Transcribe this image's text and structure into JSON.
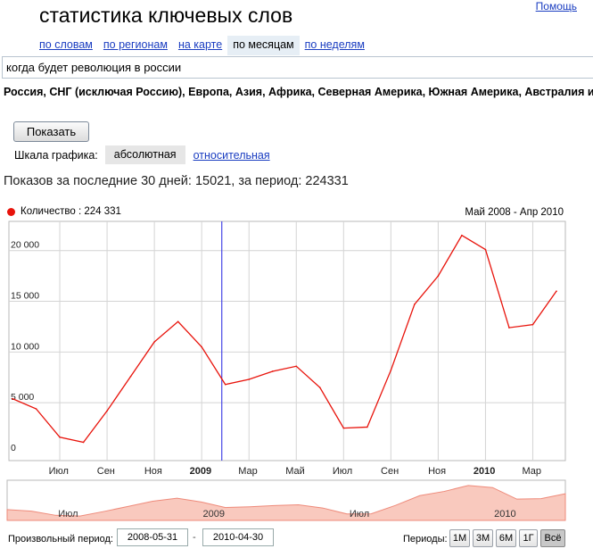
{
  "header": {
    "help": "Помощь",
    "title": "статистика ключевых слов"
  },
  "tabs": [
    {
      "label": "по словам",
      "active": false
    },
    {
      "label": "по регионам",
      "active": false
    },
    {
      "label": "на карте",
      "active": false
    },
    {
      "label": "по месяцам",
      "active": true
    },
    {
      "label": "по неделям",
      "active": false
    }
  ],
  "query": {
    "value": "когда будет революция в россии"
  },
  "regions": "Россия, СНГ (исключая Россию), Европа, Азия, Африка, Северная Америка, Южная Америка, Австралия и Океания",
  "show_button": "Показать",
  "scale": {
    "label": "Шкала графика:",
    "absolute": "абсолютная",
    "relative": "относительная"
  },
  "summary": "Показов за последние 30 дней: 15021, за период: 224331",
  "chart_data": {
    "type": "line",
    "legend": "Количество : 224 331",
    "range_label": "Май 2008 - Апр 2010",
    "x": [
      "2008-05",
      "2008-06",
      "2008-07",
      "2008-08",
      "2008-09",
      "2008-10",
      "2008-11",
      "2008-12",
      "2009-01",
      "2009-02",
      "2009-03",
      "2009-04",
      "2009-05",
      "2009-06",
      "2009-07",
      "2009-08",
      "2009-09",
      "2009-10",
      "2009-11",
      "2009-12",
      "2010-01",
      "2010-02",
      "2010-03",
      "2010-04"
    ],
    "values": [
      5400,
      4400,
      1600,
      1100,
      4200,
      7600,
      11000,
      13000,
      10500,
      6800,
      7300,
      8100,
      8600,
      6500,
      2500,
      2600,
      8200,
      14700,
      17500,
      21500,
      20100,
      12400,
      12700,
      16000
    ],
    "ylim": [
      0,
      22000
    ],
    "y_ticks": [
      {
        "value": 0,
        "label": "0"
      },
      {
        "value": 5000,
        "label": "5 000"
      },
      {
        "value": 10000,
        "label": "10 000"
      },
      {
        "value": 15000,
        "label": "15 000"
      },
      {
        "value": 20000,
        "label": "20 000"
      }
    ],
    "x_ticks": [
      {
        "index": 2,
        "label": "Июл",
        "bold": false
      },
      {
        "index": 4,
        "label": "Сен",
        "bold": false
      },
      {
        "index": 6,
        "label": "Ноя",
        "bold": false
      },
      {
        "index": 8,
        "label": "2009",
        "bold": true
      },
      {
        "index": 10,
        "label": "Мар",
        "bold": false
      },
      {
        "index": 12,
        "label": "Май",
        "bold": false
      },
      {
        "index": 14,
        "label": "Июл",
        "bold": false
      },
      {
        "index": 16,
        "label": "Сен",
        "bold": false
      },
      {
        "index": 18,
        "label": "Ноя",
        "bold": false
      },
      {
        "index": 20,
        "label": "2010",
        "bold": true
      },
      {
        "index": 22,
        "label": "Мар",
        "bold": false
      }
    ],
    "marker_index": 9,
    "navigator_labels": [
      {
        "index": 2,
        "label": "Июл"
      },
      {
        "index": 8,
        "label": "2009"
      },
      {
        "index": 14,
        "label": "Июл"
      },
      {
        "index": 20,
        "label": "2010"
      }
    ],
    "colors": {
      "line": "#e8130b",
      "marker": "#4646e6",
      "area": "#f9c9be",
      "grid": "#d4d4d4"
    }
  },
  "period": {
    "label": "Произвольный период:",
    "from": "2008-05-31",
    "to": "2010-04-30",
    "periods_label": "Периоды:",
    "buttons": [
      {
        "label": "1М",
        "active": false
      },
      {
        "label": "3М",
        "active": false
      },
      {
        "label": "6М",
        "active": false
      },
      {
        "label": "1Г",
        "active": false
      },
      {
        "label": "Всё",
        "active": true
      }
    ]
  }
}
